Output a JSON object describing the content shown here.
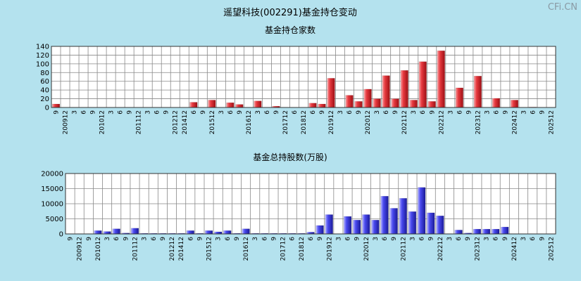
{
  "page_title": "遥望科技(002291)基金持仓变动",
  "watermark": "CFi.CN",
  "chart_data": [
    {
      "type": "bar",
      "title": "基金持仓家数",
      "color": "#e0242c",
      "ylim": [
        0,
        140
      ],
      "yticks": [
        0,
        20,
        40,
        60,
        80,
        100,
        120,
        140
      ],
      "grid": true,
      "categories": [
        "9",
        "200912",
        "3",
        "6",
        "9",
        "201012",
        "3",
        "6",
        "9",
        "201112",
        "3",
        "6",
        "9",
        "201212",
        "201412",
        "6",
        "9",
        "201512",
        "3",
        "6",
        "9",
        "201612",
        "3",
        "6",
        "9",
        "201712",
        "6",
        "201812",
        "6",
        "9",
        "201912",
        "3",
        "6",
        "9",
        "202012",
        "3",
        "6",
        "9",
        "202112",
        "3",
        "6",
        "9",
        "202212",
        "3",
        "6",
        "9",
        "202312",
        "3",
        "6",
        "9",
        "202412",
        "3",
        "6",
        "9",
        "202512"
      ],
      "tick_labels": [
        "9",
        "200912",
        "3",
        "6",
        "9",
        "201012",
        "3",
        "6",
        "9",
        "201112",
        "3",
        "6",
        "9",
        "201212",
        "201412",
        "6",
        "9",
        "201512",
        "3",
        "6",
        "9",
        "201612",
        "3",
        "6",
        "9",
        "201712",
        "6",
        "201812",
        "6",
        "9",
        "201912",
        "3",
        "6",
        "9",
        "202012",
        "3",
        "6",
        "9",
        "202112",
        "3",
        "6",
        "9",
        "202212",
        "3",
        "6",
        "9",
        "202312",
        "3",
        "6",
        "9",
        "202412",
        "3",
        "6",
        "9",
        "202512"
      ],
      "values": [
        8,
        0,
        0,
        0,
        0,
        0,
        0,
        0,
        0,
        0,
        0,
        0,
        0,
        0,
        0,
        12,
        0,
        17,
        0,
        11,
        7,
        0,
        15,
        0,
        3,
        0,
        0,
        0,
        10,
        8,
        67,
        0,
        28,
        14,
        42,
        20,
        73,
        20,
        85,
        17,
        105,
        14,
        130,
        0,
        45,
        0,
        72,
        0,
        21,
        0,
        17,
        0,
        1,
        0,
        0
      ]
    },
    {
      "type": "bar",
      "title": "基金总持股数(万股)",
      "color": "#3c3ce6",
      "ylim": [
        0,
        20000
      ],
      "yticks": [
        0,
        5000,
        10000,
        15000,
        20000
      ],
      "grid": true,
      "categories": [
        "9",
        "200912",
        "9",
        "201012",
        "3",
        "6",
        "9",
        "201112",
        "3",
        "6",
        "9",
        "201212",
        "201412",
        "6",
        "9",
        "201512",
        "3",
        "6",
        "9",
        "201612",
        "3",
        "6",
        "9",
        "201712",
        "6",
        "201812",
        "6",
        "9",
        "201912",
        "3",
        "6",
        "9",
        "202012",
        "3",
        "6",
        "9",
        "202112",
        "3",
        "6",
        "9",
        "202212",
        "3",
        "6",
        "9",
        "202312",
        "3",
        "6",
        "9",
        "202412",
        "3",
        "6",
        "9",
        "202512"
      ],
      "tick_labels": [
        "9",
        "200912",
        "9",
        "201012",
        "3",
        "6",
        "9",
        "201112",
        "3",
        "6",
        "9",
        "201212",
        "201412",
        "6",
        "9",
        "201512",
        "3",
        "6",
        "9",
        "201612",
        "3",
        "6",
        "9",
        "201712",
        "6",
        "201812",
        "6",
        "9",
        "201912",
        "3",
        "6",
        "9",
        "202012",
        "3",
        "6",
        "9",
        "202112",
        "3",
        "6",
        "9",
        "202212",
        "3",
        "6",
        "9",
        "202312",
        "3",
        "6",
        "9",
        "202412",
        "3",
        "6",
        "9",
        "202512"
      ],
      "values": [
        100,
        100,
        100,
        1100,
        800,
        1700,
        300,
        1900,
        200,
        200,
        200,
        200,
        200,
        1100,
        200,
        1100,
        700,
        1100,
        200,
        1700,
        200,
        200,
        200,
        200,
        200,
        200,
        600,
        2800,
        6400,
        100,
        5800,
        4600,
        6400,
        4600,
        12500,
        8500,
        11800,
        7400,
        15400,
        7000,
        6000,
        100,
        1300,
        300,
        1600,
        1600,
        1600,
        2300,
        100,
        100,
        100,
        100,
        100
      ]
    }
  ]
}
